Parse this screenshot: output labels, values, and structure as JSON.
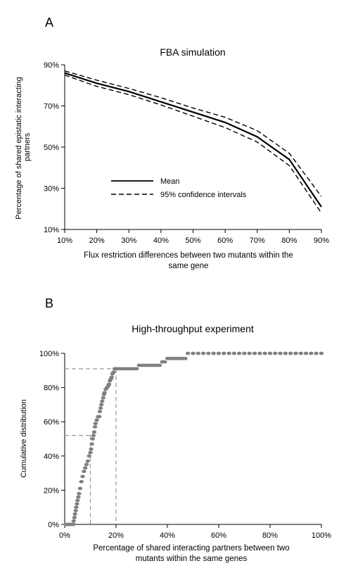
{
  "colors": {
    "line": "#000000",
    "dots": "#808080",
    "guide": "#9a9a9a",
    "background": "#ffffff"
  },
  "chart_data": [
    {
      "panel_label": "A",
      "type": "line",
      "title": "FBA simulation",
      "xlabel": "Flux restriction differences between two mutants within the same gene",
      "xlabel_lines": [
        "Flux restriction differences between two mutants within the",
        "same gene"
      ],
      "ylabel": "Percentage of shared epistatic interacting partners",
      "ylabel_lines": [
        "Percentage of shared epistatic interacting",
        "partners"
      ],
      "x": [
        10,
        20,
        30,
        40,
        50,
        60,
        70,
        80,
        90
      ],
      "x_tick_labels": [
        "10%",
        "20%",
        "30%",
        "40%",
        "50%",
        "60%",
        "70%",
        "80%",
        "90%"
      ],
      "xlim": [
        10,
        90
      ],
      "ylim": [
        10,
        90
      ],
      "y_ticks": [
        10,
        30,
        50,
        70,
        90
      ],
      "y_tick_labels": [
        "10%",
        "30%",
        "50%",
        "70%",
        "90%"
      ],
      "grid": false,
      "legend_position": "lower-left",
      "series": [
        {
          "name": "Mean",
          "style": "solid",
          "values": [
            86,
            81,
            77,
            72,
            67,
            62,
            55,
            44,
            21
          ]
        },
        {
          "name": "95% confidence intervals",
          "style": "dashed",
          "values": [
            87,
            82.5,
            78.5,
            74,
            69,
            64.5,
            58,
            47,
            26
          ]
        },
        {
          "style": "dashed",
          "values": [
            85,
            79.5,
            75.5,
            70.5,
            65,
            59.5,
            52.5,
            41,
            18
          ]
        }
      ]
    },
    {
      "panel_label": "B",
      "type": "scatter",
      "title": "High-throughput experiment",
      "xlabel": "Percentage of shared interacting partners between two mutants within the same genes",
      "xlabel_lines": [
        "Percentage of shared interacting partners between two",
        "mutants within the same genes"
      ],
      "ylabel": "Cumulative distribution",
      "xlim": [
        0,
        100
      ],
      "ylim": [
        0,
        100
      ],
      "x_ticks": [
        0,
        20,
        40,
        60,
        80,
        100
      ],
      "x_tick_labels": [
        "0%",
        "20%",
        "40%",
        "60%",
        "80%",
        "100%"
      ],
      "y_ticks": [
        0,
        20,
        40,
        60,
        80,
        100
      ],
      "y_tick_labels": [
        "0%",
        "20%",
        "40%",
        "60%",
        "80%",
        "100%"
      ],
      "grid": false,
      "points": [
        [
          0.5,
          0
        ],
        [
          1,
          0
        ],
        [
          1.5,
          0
        ],
        [
          2,
          0
        ],
        [
          2.5,
          0
        ],
        [
          3,
          0
        ],
        [
          3.4,
          0
        ],
        [
          3.5,
          2
        ],
        [
          3.8,
          4
        ],
        [
          4,
          6
        ],
        [
          4.3,
          8
        ],
        [
          4.5,
          10
        ],
        [
          4.8,
          12
        ],
        [
          5,
          14
        ],
        [
          5.3,
          16
        ],
        [
          5.6,
          18
        ],
        [
          6,
          21
        ],
        [
          6.5,
          25
        ],
        [
          7,
          28
        ],
        [
          7.5,
          31
        ],
        [
          8,
          33
        ],
        [
          8.5,
          35
        ],
        [
          9,
          37
        ],
        [
          9.5,
          40
        ],
        [
          10,
          42
        ],
        [
          10.3,
          44
        ],
        [
          10.6,
          47
        ],
        [
          10.9,
          50
        ],
        [
          11.2,
          52
        ],
        [
          11.5,
          54
        ],
        [
          11.8,
          57
        ],
        [
          12,
          59
        ],
        [
          12.5,
          61
        ],
        [
          13,
          63
        ],
        [
          13.5,
          63
        ],
        [
          13.7,
          66
        ],
        [
          14,
          68
        ],
        [
          14.3,
          70
        ],
        [
          14.6,
          72
        ],
        [
          15,
          74
        ],
        [
          15.3,
          76
        ],
        [
          15.5,
          77
        ],
        [
          16,
          79
        ],
        [
          16.5,
          80
        ],
        [
          17,
          81
        ],
        [
          17.3,
          82
        ],
        [
          17.6,
          84
        ],
        [
          18,
          85
        ],
        [
          18.3,
          86
        ],
        [
          18.6,
          88
        ],
        [
          19,
          89
        ],
        [
          19.5,
          91
        ],
        [
          20,
          91
        ],
        [
          21,
          91
        ],
        [
          22,
          91
        ],
        [
          23,
          91
        ],
        [
          24,
          91
        ],
        [
          25,
          91
        ],
        [
          26,
          91
        ],
        [
          27,
          91
        ],
        [
          28,
          91
        ],
        [
          29,
          93
        ],
        [
          30,
          93
        ],
        [
          31,
          93
        ],
        [
          32,
          93
        ],
        [
          33,
          93
        ],
        [
          34,
          93
        ],
        [
          35,
          93
        ],
        [
          36,
          93
        ],
        [
          37,
          93
        ],
        [
          38,
          95
        ],
        [
          39,
          95
        ],
        [
          40,
          97
        ],
        [
          41,
          97
        ],
        [
          42,
          97
        ],
        [
          43,
          97
        ],
        [
          44,
          97
        ],
        [
          45,
          97
        ],
        [
          46,
          97
        ],
        [
          47,
          97
        ],
        [
          48,
          100
        ],
        [
          50,
          100
        ],
        [
          52,
          100
        ],
        [
          54,
          100
        ],
        [
          56,
          100
        ],
        [
          58,
          100
        ],
        [
          60,
          100
        ],
        [
          62,
          100
        ],
        [
          64,
          100
        ],
        [
          66,
          100
        ],
        [
          68,
          100
        ],
        [
          70,
          100
        ],
        [
          72,
          100
        ],
        [
          74,
          100
        ],
        [
          76,
          100
        ],
        [
          78,
          100
        ],
        [
          80,
          100
        ],
        [
          82,
          100
        ],
        [
          84,
          100
        ],
        [
          86,
          100
        ],
        [
          88,
          100
        ],
        [
          90,
          100
        ],
        [
          92,
          100
        ],
        [
          94,
          100
        ],
        [
          96,
          100
        ],
        [
          98,
          100
        ],
        [
          100,
          100
        ]
      ],
      "reference_lines": [
        {
          "x": 10,
          "y": 52
        },
        {
          "x": 20,
          "y": 91
        }
      ]
    }
  ]
}
